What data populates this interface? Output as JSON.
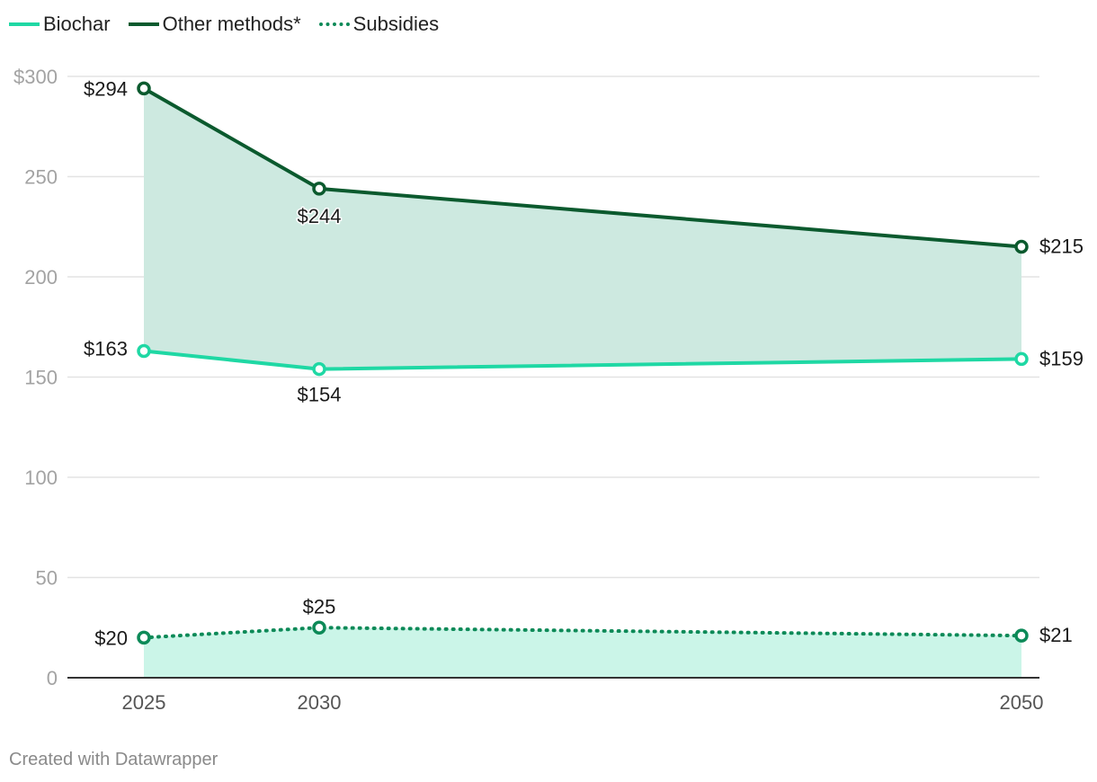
{
  "legend": [
    {
      "label": "Biochar",
      "style": "solid",
      "color": "#1fd8a4"
    },
    {
      "label": "Other methods*",
      "style": "solid",
      "color": "#0b5a2e"
    },
    {
      "label": "Subsidies",
      "style": "dotted",
      "color": "#0d8a58"
    }
  ],
  "footer": "Created with Datawrapper",
  "chart_data": {
    "type": "line",
    "x": [
      2025,
      2030,
      2050
    ],
    "x_tick_labels": [
      "2025",
      "2030",
      "2050"
    ],
    "y_ticks": [
      0,
      50,
      100,
      150,
      200,
      250,
      300
    ],
    "y_tick_labels": [
      "0",
      "50",
      "100",
      "150",
      "200",
      "250",
      "$300"
    ],
    "ylim": [
      0,
      300
    ],
    "grid": true,
    "legend_position": "top-left",
    "series": [
      {
        "name": "Biochar",
        "values": [
          163,
          154,
          159
        ],
        "labels": [
          "$163",
          "$154",
          "$159"
        ],
        "color": "#1fd8a4",
        "style": "solid"
      },
      {
        "name": "Other methods*",
        "values": [
          294,
          244,
          215
        ],
        "labels": [
          "$294",
          "$244",
          "$215"
        ],
        "color": "#0b5a2e",
        "style": "solid"
      },
      {
        "name": "Subsidies",
        "values": [
          20,
          25,
          21
        ],
        "labels": [
          "$20",
          "$25",
          "$21"
        ],
        "color": "#0d8a58",
        "style": "dotted"
      }
    ],
    "areas": [
      {
        "between": [
          "Biochar",
          "Other methods*"
        ],
        "color": "#cde9e0"
      },
      {
        "between": [
          "baseline",
          "Subsidies"
        ],
        "color": "#cbf5e8"
      }
    ]
  }
}
